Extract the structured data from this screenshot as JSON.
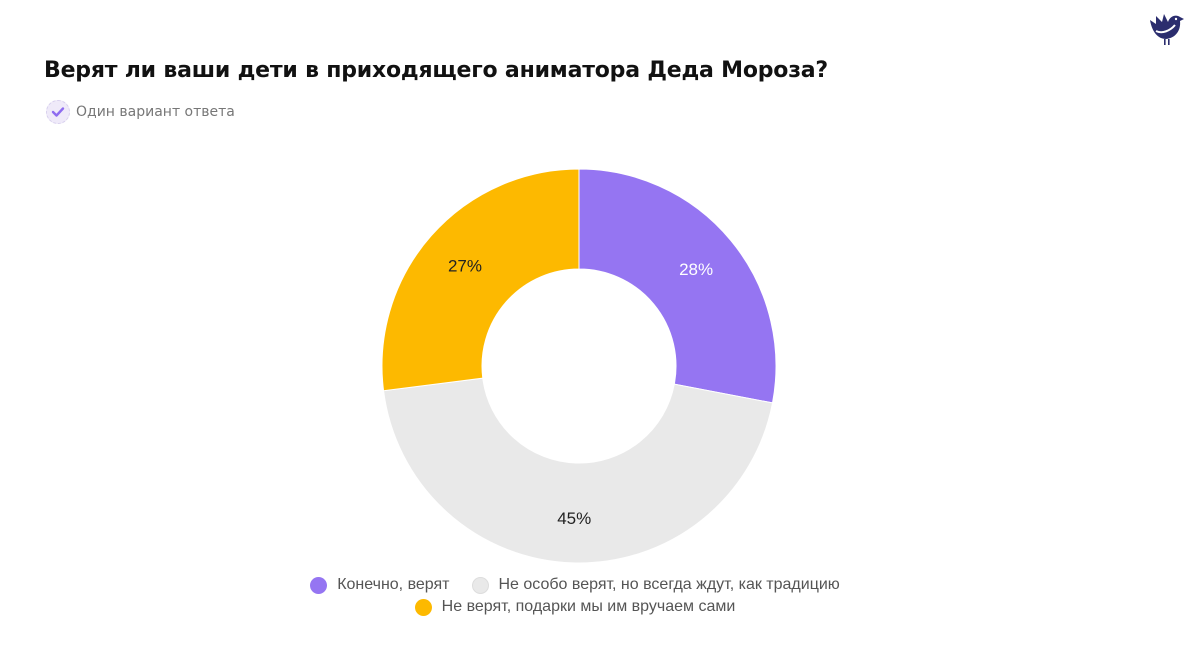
{
  "title": "Верят ли ваши дети в приходящего аниматора Деда Мороза?",
  "subtitle": "Один вариант ответа",
  "icons": {
    "logo": "bird-logo",
    "subtitle": "check-circle-icon"
  },
  "chart_data": {
    "type": "pie",
    "donut": true,
    "legend_position": "bottom",
    "slices": [
      {
        "label": "Конечно, верят",
        "value": 28,
        "display": "28%",
        "color": "#9575f2",
        "label_color": "#ffffff"
      },
      {
        "label": "Не особо верят, но всегда ждут, как традицию",
        "value": 45,
        "display": "45%",
        "color": "#e9e9e9",
        "label_color": "#222222"
      },
      {
        "label": "Не верят, подарки мы им вручаем сами",
        "value": 27,
        "display": "27%",
        "color": "#fdb900",
        "label_color": "#222222"
      }
    ]
  }
}
